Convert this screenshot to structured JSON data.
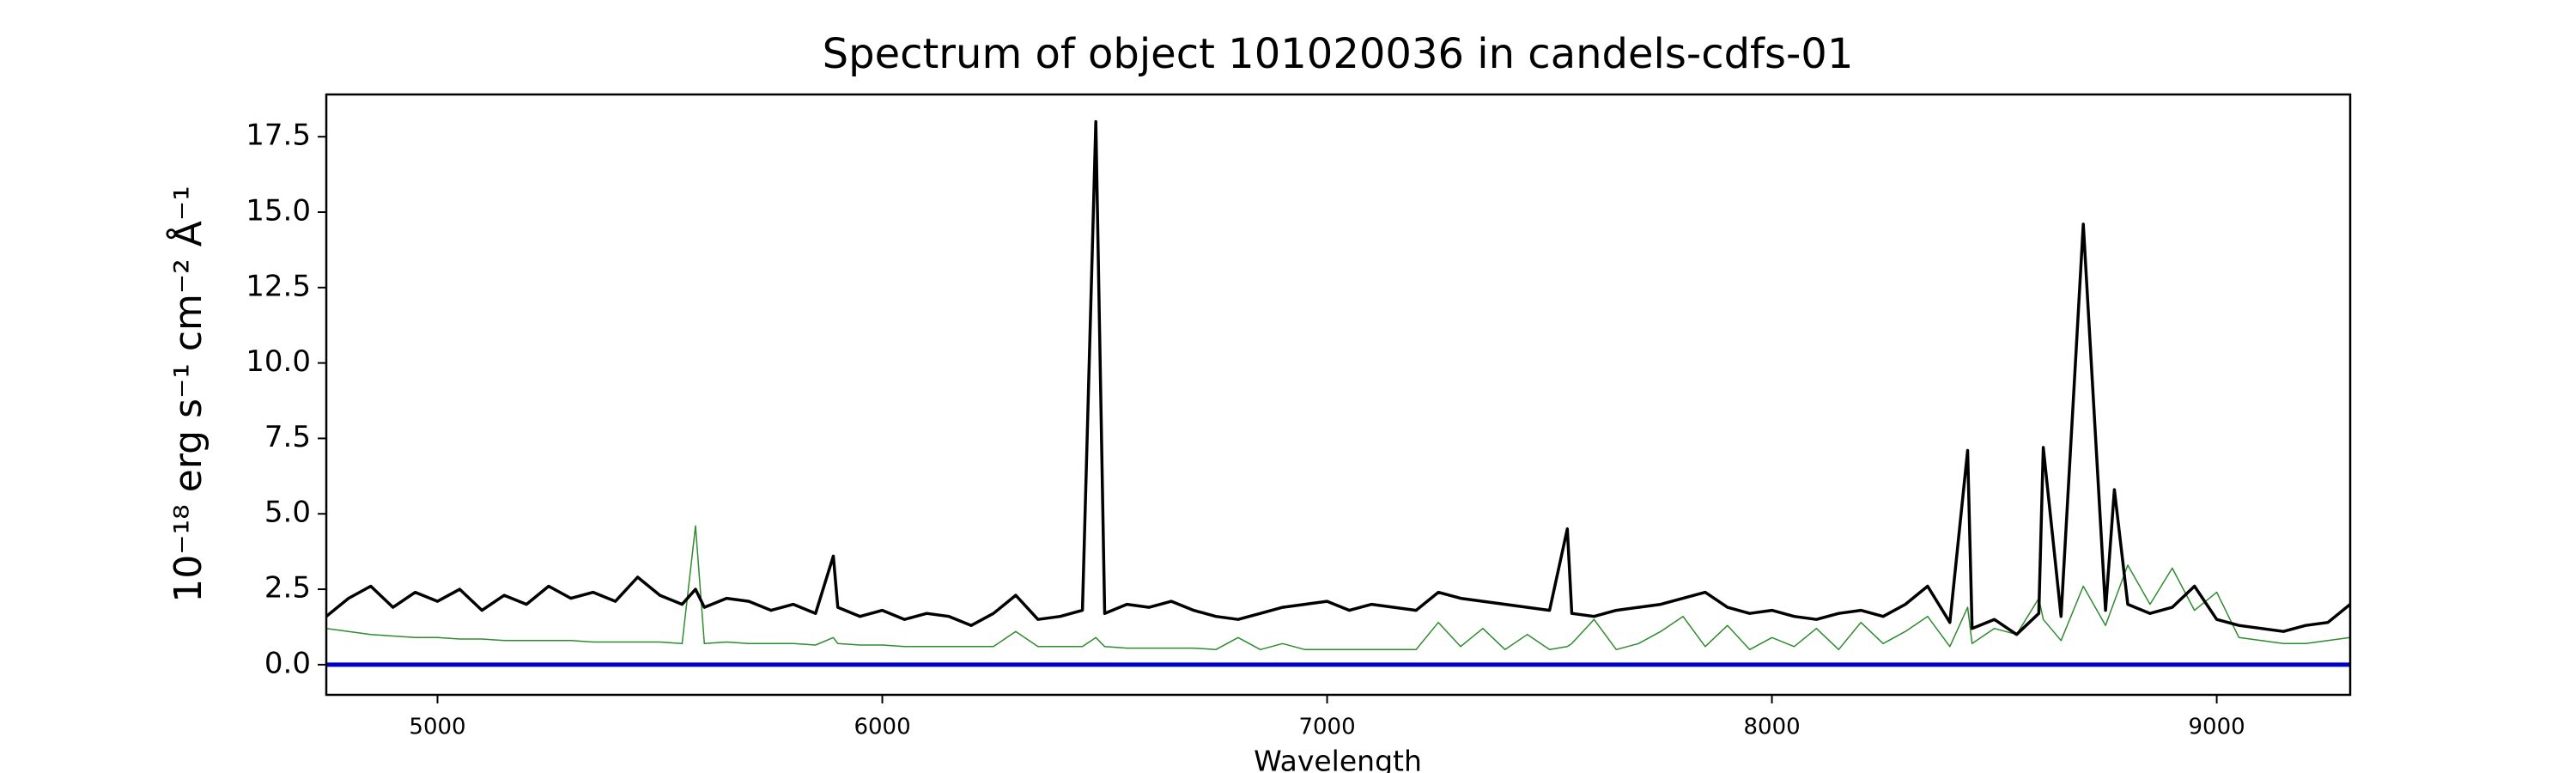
{
  "chart_data": {
    "type": "line",
    "title": "Spectrum of object 101020036 in candels-cdfs-01",
    "xlabel": "Wavelength",
    "ylabel": "10⁻¹⁸ erg s⁻¹ cm⁻² Å⁻¹",
    "x": [
      4750,
      4800,
      4850,
      4900,
      4950,
      5000,
      5050,
      5100,
      5150,
      5200,
      5250,
      5300,
      5350,
      5400,
      5450,
      5500,
      5550,
      5580,
      5600,
      5650,
      5700,
      5750,
      5800,
      5850,
      5890,
      5900,
      5950,
      6000,
      6050,
      6100,
      6150,
      6200,
      6250,
      6300,
      6350,
      6400,
      6450,
      6480,
      6500,
      6550,
      6600,
      6650,
      6700,
      6750,
      6800,
      6850,
      6900,
      6950,
      7000,
      7050,
      7100,
      7150,
      7200,
      7250,
      7300,
      7350,
      7400,
      7450,
      7500,
      7540,
      7550,
      7600,
      7650,
      7700,
      7750,
      7800,
      7850,
      7900,
      7950,
      8000,
      8050,
      8100,
      8150,
      8200,
      8250,
      8300,
      8350,
      8400,
      8440,
      8450,
      8500,
      8550,
      8600,
      8610,
      8650,
      8700,
      8750,
      8770,
      8800,
      8850,
      8900,
      8950,
      9000,
      9050,
      9100,
      9150,
      9200,
      9250,
      9300
    ],
    "series": [
      {
        "color": "#000000",
        "width": 3.5,
        "values": [
          1.6,
          2.2,
          2.6,
          1.9,
          2.4,
          2.1,
          2.5,
          1.8,
          2.3,
          2.0,
          2.6,
          2.2,
          2.4,
          2.1,
          2.9,
          2.3,
          2.0,
          2.5,
          1.9,
          2.2,
          2.1,
          1.8,
          2.0,
          1.7,
          3.6,
          1.9,
          1.6,
          1.8,
          1.5,
          1.7,
          1.6,
          1.3,
          1.7,
          2.3,
          1.5,
          1.6,
          1.8,
          18.0,
          1.7,
          2.0,
          1.9,
          2.1,
          1.8,
          1.6,
          1.5,
          1.7,
          1.9,
          2.0,
          2.1,
          1.8,
          2.0,
          1.9,
          1.8,
          2.4,
          2.2,
          2.1,
          2.0,
          1.9,
          1.8,
          4.5,
          1.7,
          1.6,
          1.8,
          1.9,
          2.0,
          2.2,
          2.4,
          1.9,
          1.7,
          1.8,
          1.6,
          1.5,
          1.7,
          1.8,
          1.6,
          2.0,
          2.6,
          1.4,
          7.1,
          1.2,
          1.5,
          1.0,
          1.7,
          7.2,
          1.6,
          14.6,
          1.8,
          5.8,
          2.0,
          1.7,
          1.9,
          2.6,
          1.5,
          1.3,
          1.2,
          1.1,
          1.3,
          1.4,
          2.0
        ]
      },
      {
        "color": "#2e8b2e",
        "width": 1.5,
        "values": [
          1.2,
          1.1,
          1.0,
          0.95,
          0.9,
          0.9,
          0.85,
          0.85,
          0.8,
          0.8,
          0.8,
          0.8,
          0.75,
          0.75,
          0.75,
          0.75,
          0.7,
          4.6,
          0.7,
          0.75,
          0.7,
          0.7,
          0.7,
          0.65,
          0.9,
          0.7,
          0.65,
          0.65,
          0.6,
          0.6,
          0.6,
          0.6,
          0.6,
          1.1,
          0.6,
          0.6,
          0.6,
          0.9,
          0.6,
          0.55,
          0.55,
          0.55,
          0.55,
          0.5,
          0.9,
          0.5,
          0.7,
          0.5,
          0.5,
          0.5,
          0.5,
          0.5,
          0.5,
          1.4,
          0.6,
          1.2,
          0.5,
          1.0,
          0.5,
          0.6,
          0.7,
          1.5,
          0.5,
          0.7,
          1.1,
          1.6,
          0.6,
          1.3,
          0.5,
          0.9,
          0.6,
          1.2,
          0.5,
          1.4,
          0.7,
          1.1,
          1.6,
          0.6,
          1.9,
          0.7,
          1.2,
          1.0,
          2.2,
          1.5,
          0.8,
          2.6,
          1.3,
          2.1,
          3.3,
          2.0,
          3.2,
          1.8,
          2.4,
          0.9,
          0.8,
          0.7,
          0.7,
          0.8,
          0.9
        ]
      }
    ],
    "hlines": [
      {
        "value": 0,
        "color": "#0000cc"
      }
    ],
    "xlim": [
      4750,
      9300
    ],
    "ylim": [
      -1,
      18.9
    ],
    "xticks": [
      5000,
      6000,
      7000,
      8000,
      9000
    ],
    "yticks": [
      {
        "value": 0,
        "label": "0.0"
      },
      2.5,
      {
        "value": 5,
        "label": "5.0"
      },
      7.5,
      {
        "value": 10,
        "label": "10.0"
      },
      12.5,
      {
        "value": 15,
        "label": "15.0"
      },
      17.5
    ],
    "grid": false
  }
}
